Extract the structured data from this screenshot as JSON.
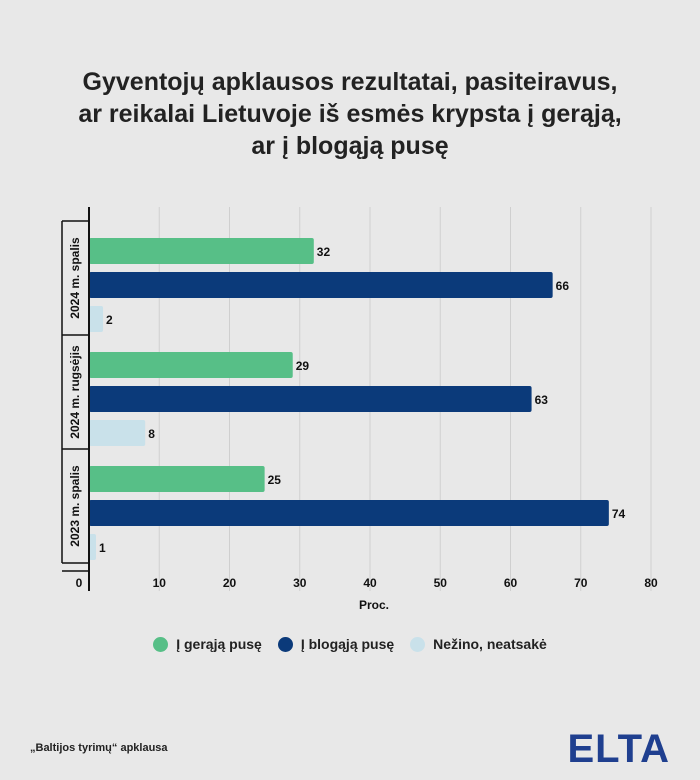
{
  "chart_data": {
    "type": "bar",
    "orientation": "horizontal",
    "title_lines": [
      "Gyventojų apklausos rezultatai, pasiteiravus,",
      "ar reikalai Lietuvoje iš esmės krypsta į gerąją,",
      "ar į blogąją pusę"
    ],
    "categories": [
      "2024 m. spalis",
      "2024 m. rugsėjis",
      "2023 m. spalis"
    ],
    "series": [
      {
        "name": "Į gerąją pusę",
        "color": "#57bf87",
        "values": [
          32,
          29,
          25
        ]
      },
      {
        "name": "Į blogąją pusę",
        "color": "#0b3a7a",
        "values": [
          66,
          63,
          74
        ]
      },
      {
        "name": "Nežino, neatsakė",
        "color": "#c9e1ea",
        "values": [
          2,
          8,
          1
        ]
      }
    ],
    "xlabel": "Proc.",
    "xlim": [
      0,
      80
    ],
    "xticks": [
      0,
      10,
      20,
      30,
      40,
      50,
      60,
      70,
      80
    ],
    "grid": true,
    "legend_position": "bottom"
  },
  "source": "„Baltijos tyrimų“ apklausa",
  "logo": "ELTA"
}
